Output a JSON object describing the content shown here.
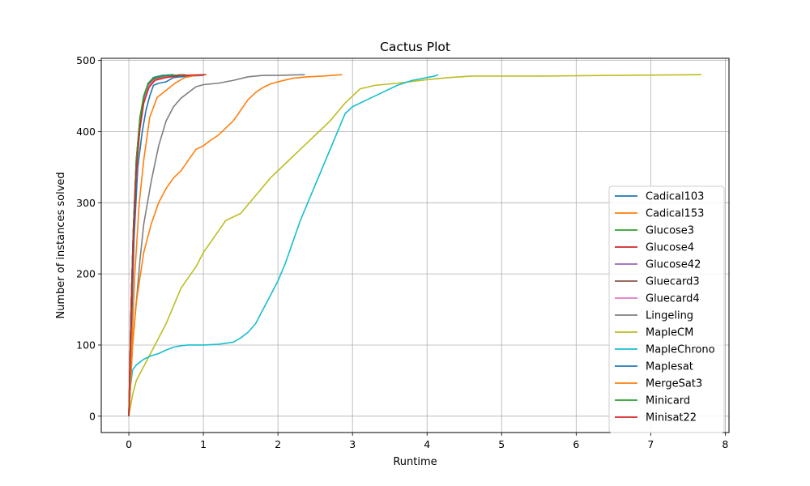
{
  "chart_data": {
    "type": "line",
    "title": "Cactus Plot",
    "xlabel": "Runtime",
    "ylabel": "Number of instances solved",
    "xlim": [
      -0.37,
      8.05
    ],
    "ylim": [
      -23,
      503
    ],
    "xticks": [
      0,
      1,
      2,
      3,
      4,
      5,
      6,
      7,
      8
    ],
    "yticks": [
      0,
      100,
      200,
      300,
      400,
      500
    ],
    "grid": true,
    "legend_position": "lower-right",
    "series": [
      {
        "name": "Cadical103",
        "color": "#1f77b4",
        "points": [
          [
            0,
            0
          ],
          [
            0.03,
            100
          ],
          [
            0.07,
            250
          ],
          [
            0.12,
            350
          ],
          [
            0.18,
            400
          ],
          [
            0.23,
            430
          ],
          [
            0.28,
            450
          ],
          [
            0.33,
            465
          ],
          [
            0.4,
            468
          ],
          [
            0.5,
            470
          ],
          [
            0.6,
            476
          ],
          [
            0.8,
            478
          ],
          [
            1.0,
            479
          ]
        ]
      },
      {
        "name": "Cadical153",
        "color": "#ff7f0e",
        "points": [
          [
            0,
            0
          ],
          [
            0.04,
            100
          ],
          [
            0.08,
            200
          ],
          [
            0.14,
            300
          ],
          [
            0.2,
            360
          ],
          [
            0.28,
            420
          ],
          [
            0.38,
            448
          ],
          [
            0.5,
            458
          ],
          [
            0.62,
            468
          ],
          [
            0.75,
            476
          ],
          [
            0.9,
            479
          ],
          [
            1.04,
            480
          ]
        ]
      },
      {
        "name": "Glucose3",
        "color": "#2ca02c",
        "points": [
          [
            0,
            0
          ],
          [
            0.03,
            150
          ],
          [
            0.06,
            260
          ],
          [
            0.1,
            360
          ],
          [
            0.15,
            420
          ],
          [
            0.2,
            450
          ],
          [
            0.26,
            468
          ],
          [
            0.33,
            475
          ],
          [
            0.45,
            478
          ],
          [
            0.6,
            479
          ],
          [
            0.75,
            480
          ]
        ]
      },
      {
        "name": "Glucose4",
        "color": "#d62728",
        "points": [
          [
            0,
            0
          ],
          [
            0.03,
            150
          ],
          [
            0.06,
            260
          ],
          [
            0.1,
            350
          ],
          [
            0.15,
            410
          ],
          [
            0.2,
            445
          ],
          [
            0.27,
            465
          ],
          [
            0.35,
            473
          ],
          [
            0.5,
            477
          ],
          [
            0.65,
            479
          ],
          [
            0.75,
            480
          ]
        ]
      },
      {
        "name": "Glucose42",
        "color": "#9467bd",
        "points": [
          [
            0,
            0
          ],
          [
            0.03,
            150
          ],
          [
            0.06,
            260
          ],
          [
            0.1,
            355
          ],
          [
            0.15,
            415
          ],
          [
            0.2,
            448
          ],
          [
            0.27,
            466
          ],
          [
            0.35,
            474
          ],
          [
            0.5,
            478
          ],
          [
            0.65,
            479
          ],
          [
            0.72,
            480
          ]
        ]
      },
      {
        "name": "Gluecard3",
        "color": "#8c564b",
        "points": [
          [
            0,
            0
          ],
          [
            0.03,
            150
          ],
          [
            0.06,
            260
          ],
          [
            0.1,
            360
          ],
          [
            0.15,
            420
          ],
          [
            0.2,
            450
          ],
          [
            0.26,
            467
          ],
          [
            0.33,
            474
          ],
          [
            0.45,
            478
          ],
          [
            0.6,
            479
          ],
          [
            0.75,
            480
          ]
        ]
      },
      {
        "name": "Gluecard4",
        "color": "#e377c2",
        "points": [
          [
            0,
            0
          ],
          [
            0.03,
            150
          ],
          [
            0.06,
            260
          ],
          [
            0.1,
            350
          ],
          [
            0.15,
            410
          ],
          [
            0.2,
            445
          ],
          [
            0.27,
            465
          ],
          [
            0.35,
            473
          ],
          [
            0.5,
            477
          ],
          [
            0.65,
            479
          ],
          [
            0.72,
            480
          ]
        ]
      },
      {
        "name": "Lingeling",
        "color": "#7f7f7f",
        "points": [
          [
            0,
            0
          ],
          [
            0.05,
            100
          ],
          [
            0.1,
            160
          ],
          [
            0.15,
            220
          ],
          [
            0.2,
            270
          ],
          [
            0.3,
            330
          ],
          [
            0.4,
            380
          ],
          [
            0.5,
            415
          ],
          [
            0.6,
            435
          ],
          [
            0.7,
            447
          ],
          [
            0.8,
            455
          ],
          [
            0.9,
            463
          ],
          [
            1.0,
            466
          ],
          [
            1.2,
            468
          ],
          [
            1.4,
            472
          ],
          [
            1.6,
            477
          ],
          [
            1.8,
            479
          ],
          [
            2.0,
            479
          ],
          [
            2.36,
            480
          ]
        ]
      },
      {
        "name": "MapleCM",
        "color": "#bcbd22",
        "points": [
          [
            0,
            0
          ],
          [
            0.05,
            30
          ],
          [
            0.1,
            50
          ],
          [
            0.2,
            70
          ],
          [
            0.35,
            100
          ],
          [
            0.5,
            130
          ],
          [
            0.7,
            180
          ],
          [
            0.9,
            210
          ],
          [
            1.0,
            230
          ],
          [
            1.2,
            260
          ],
          [
            1.3,
            275
          ],
          [
            1.5,
            285
          ],
          [
            1.7,
            310
          ],
          [
            1.9,
            335
          ],
          [
            2.1,
            355
          ],
          [
            2.3,
            375
          ],
          [
            2.5,
            395
          ],
          [
            2.7,
            415
          ],
          [
            2.9,
            440
          ],
          [
            3.1,
            460
          ],
          [
            3.3,
            465
          ],
          [
            3.6,
            468
          ],
          [
            4.0,
            473
          ],
          [
            4.3,
            476
          ],
          [
            4.6,
            478
          ],
          [
            5.5,
            478
          ],
          [
            6.5,
            479
          ],
          [
            7.68,
            480
          ]
        ]
      },
      {
        "name": "MapleChrono",
        "color": "#17becf",
        "points": [
          [
            0,
            0
          ],
          [
            0.02,
            40
          ],
          [
            0.05,
            65
          ],
          [
            0.1,
            72
          ],
          [
            0.2,
            80
          ],
          [
            0.3,
            85
          ],
          [
            0.4,
            88
          ],
          [
            0.5,
            93
          ],
          [
            0.6,
            97
          ],
          [
            0.7,
            99
          ],
          [
            0.8,
            100
          ],
          [
            1.0,
            100
          ],
          [
            1.2,
            101
          ],
          [
            1.4,
            104
          ],
          [
            1.5,
            110
          ],
          [
            1.6,
            118
          ],
          [
            1.7,
            130
          ],
          [
            1.8,
            150
          ],
          [
            1.9,
            170
          ],
          [
            2.0,
            190
          ],
          [
            2.1,
            215
          ],
          [
            2.2,
            245
          ],
          [
            2.3,
            275
          ],
          [
            2.4,
            300
          ],
          [
            2.5,
            325
          ],
          [
            2.6,
            350
          ],
          [
            2.7,
            375
          ],
          [
            2.8,
            400
          ],
          [
            2.9,
            425
          ],
          [
            3.0,
            435
          ],
          [
            3.2,
            445
          ],
          [
            3.4,
            455
          ],
          [
            3.6,
            465
          ],
          [
            3.8,
            472
          ],
          [
            4.0,
            476
          ],
          [
            4.1,
            478
          ],
          [
            4.15,
            480
          ]
        ]
      },
      {
        "name": "Maplesat",
        "color": "#1f77b4",
        "points": [
          [
            0,
            0
          ],
          [
            0.03,
            150
          ],
          [
            0.06,
            260
          ],
          [
            0.1,
            355
          ],
          [
            0.15,
            415
          ],
          [
            0.2,
            448
          ],
          [
            0.26,
            468
          ],
          [
            0.33,
            476
          ],
          [
            0.45,
            479
          ],
          [
            0.6,
            480
          ]
        ]
      },
      {
        "name": "MergeSat3",
        "color": "#ff7f0e",
        "points": [
          [
            0,
            0
          ],
          [
            0.05,
            100
          ],
          [
            0.1,
            160
          ],
          [
            0.2,
            230
          ],
          [
            0.3,
            270
          ],
          [
            0.4,
            300
          ],
          [
            0.5,
            320
          ],
          [
            0.6,
            335
          ],
          [
            0.7,
            345
          ],
          [
            0.8,
            360
          ],
          [
            0.9,
            375
          ],
          [
            1.0,
            380
          ],
          [
            1.1,
            388
          ],
          [
            1.2,
            395
          ],
          [
            1.3,
            405
          ],
          [
            1.4,
            415
          ],
          [
            1.5,
            430
          ],
          [
            1.6,
            445
          ],
          [
            1.7,
            455
          ],
          [
            1.8,
            462
          ],
          [
            1.9,
            467
          ],
          [
            2.0,
            470
          ],
          [
            2.2,
            475
          ],
          [
            2.4,
            477
          ],
          [
            2.6,
            478
          ],
          [
            2.86,
            480
          ]
        ]
      },
      {
        "name": "Minicard",
        "color": "#2ca02c",
        "points": [
          [
            0,
            0
          ],
          [
            0.03,
            150
          ],
          [
            0.06,
            260
          ],
          [
            0.1,
            360
          ],
          [
            0.15,
            420
          ],
          [
            0.2,
            450
          ],
          [
            0.26,
            468
          ],
          [
            0.33,
            475
          ],
          [
            0.45,
            478
          ],
          [
            0.6,
            479
          ],
          [
            0.75,
            480
          ]
        ]
      },
      {
        "name": "Minisat22",
        "color": "#d62728",
        "points": [
          [
            0,
            0
          ],
          [
            0.03,
            140
          ],
          [
            0.06,
            250
          ],
          [
            0.1,
            345
          ],
          [
            0.15,
            405
          ],
          [
            0.2,
            440
          ],
          [
            0.27,
            462
          ],
          [
            0.35,
            472
          ],
          [
            0.5,
            476
          ],
          [
            0.7,
            479
          ],
          [
            1.03,
            480
          ]
        ]
      }
    ]
  }
}
